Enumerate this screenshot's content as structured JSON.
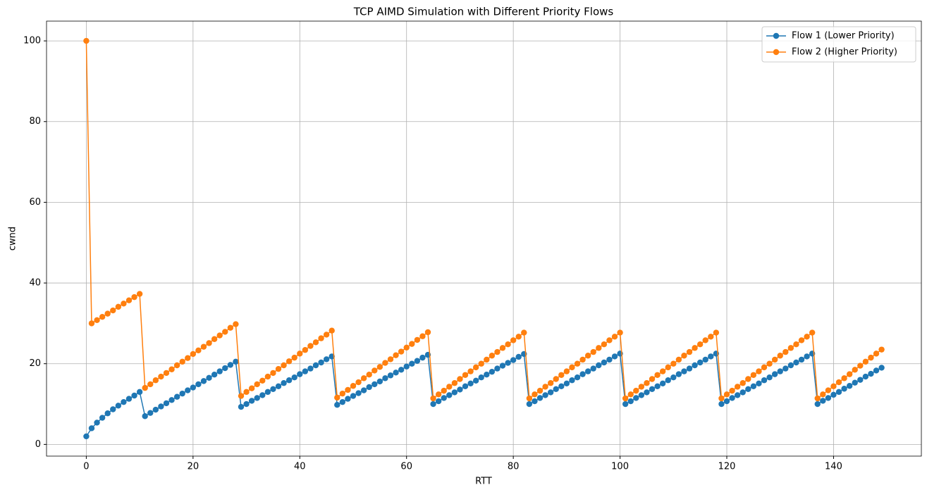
{
  "chart_data": {
    "type": "line",
    "title": "TCP AIMD Simulation with Different Priority Flows",
    "x_label": "RTT",
    "y_label": "cwnd",
    "x": [
      0,
      1,
      2,
      3,
      4,
      5,
      6,
      7,
      8,
      9,
      10,
      11,
      12,
      13,
      14,
      15,
      16,
      17,
      18,
      19,
      20,
      21,
      22,
      23,
      24,
      25,
      26,
      27,
      28,
      29,
      30,
      31,
      32,
      33,
      34,
      35,
      36,
      37,
      38,
      39,
      40,
      41,
      42,
      43,
      44,
      45,
      46,
      47,
      48,
      49,
      50,
      51,
      52,
      53,
      54,
      55,
      56,
      57,
      58,
      59,
      60,
      61,
      62,
      63,
      64,
      65,
      66,
      67,
      68,
      69,
      70,
      71,
      72,
      73,
      74,
      75,
      76,
      77,
      78,
      79,
      80,
      81,
      82,
      83,
      84,
      85,
      86,
      87,
      88,
      89,
      90,
      91,
      92,
      93,
      94,
      95,
      96,
      97,
      98,
      99,
      100,
      101,
      102,
      103,
      104,
      105,
      106,
      107,
      108,
      109,
      110,
      111,
      112,
      113,
      114,
      115,
      116,
      117,
      118,
      119,
      120,
      121,
      122,
      123,
      124,
      125,
      126,
      127,
      128,
      129,
      130,
      131,
      132,
      133,
      134,
      135,
      136,
      137,
      138,
      139,
      140,
      141,
      142,
      143,
      144,
      145,
      146,
      147,
      148,
      149
    ],
    "series": [
      {
        "name": "Flow 1 (Lower Priority)",
        "color": "#1f77b4",
        "values": [
          2,
          4,
          5.4,
          6.6,
          7.7,
          8.7,
          9.6,
          10.5,
          11.3,
          12.1,
          13.0,
          7.0,
          7.8,
          8.6,
          9.4,
          10.2,
          11.0,
          11.8,
          12.6,
          13.4,
          14.1,
          14.9,
          15.7,
          16.5,
          17.3,
          18.1,
          18.9,
          19.7,
          20.5,
          9.3,
          10.0,
          10.8,
          11.5,
          12.2,
          13.0,
          13.7,
          14.4,
          15.2,
          15.9,
          16.6,
          17.4,
          18.1,
          18.8,
          19.6,
          20.3,
          21.1,
          21.8,
          9.8,
          10.5,
          11.3,
          12.0,
          12.7,
          13.4,
          14.2,
          14.9,
          15.6,
          16.4,
          17.1,
          17.8,
          18.5,
          19.3,
          20.0,
          20.7,
          21.5,
          22.2,
          10.0,
          10.7,
          11.5,
          12.2,
          12.9,
          13.6,
          14.4,
          15.1,
          15.8,
          16.6,
          17.3,
          18.0,
          18.8,
          19.5,
          20.2,
          20.9,
          21.7,
          22.4,
          10.0,
          10.7,
          11.5,
          12.2,
          12.9,
          13.7,
          14.4,
          15.1,
          15.9,
          16.6,
          17.4,
          18.1,
          18.8,
          19.6,
          20.3,
          21.0,
          21.8,
          22.5,
          10.0,
          10.7,
          11.5,
          12.2,
          12.9,
          13.7,
          14.4,
          15.1,
          15.9,
          16.6,
          17.4,
          18.1,
          18.8,
          19.6,
          20.3,
          21.0,
          21.8,
          22.5,
          10.0,
          10.7,
          11.5,
          12.2,
          12.9,
          13.7,
          14.4,
          15.1,
          15.9,
          16.6,
          17.4,
          18.1,
          18.8,
          19.6,
          20.3,
          21.0,
          21.8,
          22.5,
          10.0,
          10.8,
          11.5,
          12.3,
          13.0,
          13.8,
          14.5,
          15.3,
          16.0,
          16.8,
          17.5,
          18.3,
          19.0
        ]
      },
      {
        "name": "Flow 2 (Higher Priority)",
        "color": "#ff7f0e",
        "values": [
          100,
          30.0,
          30.8,
          31.6,
          32.4,
          33.2,
          34.1,
          34.9,
          35.7,
          36.5,
          37.3,
          14.0,
          14.9,
          15.9,
          16.8,
          17.7,
          18.6,
          19.6,
          20.5,
          21.4,
          22.4,
          23.3,
          24.2,
          25.1,
          26.1,
          27.0,
          27.9,
          28.9,
          29.8,
          12.0,
          13.0,
          13.9,
          14.9,
          15.8,
          16.8,
          17.7,
          18.7,
          19.6,
          20.6,
          21.5,
          22.5,
          23.4,
          24.4,
          25.3,
          26.3,
          27.2,
          28.2,
          11.6,
          12.6,
          13.5,
          14.5,
          15.4,
          16.4,
          17.3,
          18.3,
          19.2,
          20.2,
          21.1,
          22.1,
          23.0,
          24.0,
          24.9,
          25.9,
          26.8,
          27.8,
          11.4,
          12.4,
          13.3,
          14.3,
          15.2,
          16.2,
          17.2,
          18.1,
          19.1,
          20.0,
          21.0,
          22.0,
          22.9,
          23.9,
          24.8,
          25.8,
          26.7,
          27.7,
          11.4,
          12.4,
          13.3,
          14.3,
          15.2,
          16.2,
          17.2,
          18.1,
          19.1,
          20.0,
          21.0,
          22.0,
          22.9,
          23.9,
          24.8,
          25.8,
          26.7,
          27.7,
          11.4,
          12.4,
          13.3,
          14.3,
          15.2,
          16.2,
          17.2,
          18.1,
          19.1,
          20.0,
          21.0,
          22.0,
          22.9,
          23.9,
          24.8,
          25.8,
          26.7,
          27.7,
          11.4,
          12.4,
          13.3,
          14.3,
          15.2,
          16.2,
          17.2,
          18.1,
          19.1,
          20.0,
          21.0,
          22.0,
          22.9,
          23.9,
          24.8,
          25.8,
          26.7,
          27.7,
          11.4,
          12.4,
          13.4,
          14.4,
          15.4,
          16.4,
          17.4,
          18.5,
          19.5,
          20.5,
          21.5,
          22.5,
          23.5
        ]
      }
    ],
    "xlim": [
      -7.45,
      156.45
    ],
    "ylim": [
      -2.9,
      104.9
    ],
    "xticks": [
      0,
      20,
      40,
      60,
      80,
      100,
      120,
      140
    ],
    "yticks": [
      0,
      20,
      40,
      60,
      80,
      100
    ],
    "grid": true,
    "legend": "upper right",
    "markers": true
  }
}
